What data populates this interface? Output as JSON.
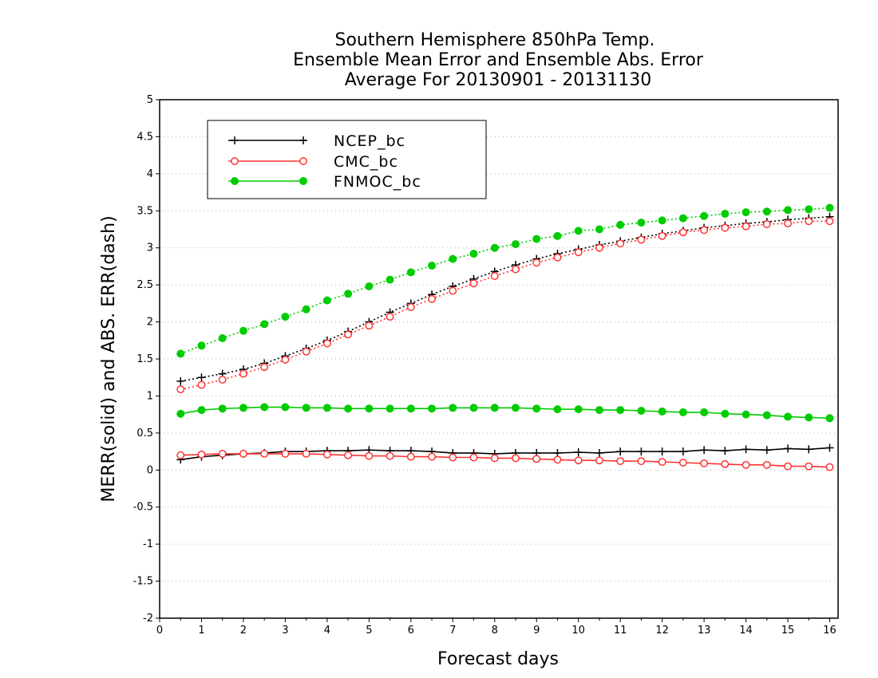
{
  "chart_data": {
    "type": "line",
    "title": [
      "Southern Hemisphere 850hPa Temp.",
      "Ensemble Mean Error and Ensemble Abs. Error",
      "Average For 20130901 - 20131130"
    ],
    "xlabel": "Forecast days",
    "ylabel": "MERR(solid) and ABS. ERR(dash)",
    "xlim": [
      0,
      16.2
    ],
    "ylim": [
      -2,
      5
    ],
    "xticks": [
      0,
      1,
      2,
      3,
      4,
      5,
      6,
      7,
      8,
      9,
      10,
      11,
      12,
      13,
      14,
      15,
      16
    ],
    "yticks": [
      -2,
      -1.5,
      -1,
      -0.5,
      0,
      0.5,
      1,
      1.5,
      2,
      2.5,
      3,
      3.5,
      4,
      4.5,
      5
    ],
    "grid": "horizontal dotted",
    "legend_position": "top-left",
    "x": [
      0.5,
      1,
      1.5,
      2,
      2.5,
      3,
      3.5,
      4,
      4.5,
      5,
      5.5,
      6,
      6.5,
      7,
      7.5,
      8,
      8.5,
      9,
      9.5,
      10,
      10.5,
      11,
      11.5,
      12,
      12.5,
      13,
      13.5,
      14,
      14.5,
      15,
      15.5,
      16
    ],
    "series": [
      {
        "name": "NCEP_bc",
        "color": "#000000",
        "marker": "plus",
        "merr": [
          0.14,
          0.18,
          0.2,
          0.22,
          0.23,
          0.25,
          0.25,
          0.26,
          0.26,
          0.27,
          0.26,
          0.26,
          0.25,
          0.23,
          0.23,
          0.22,
          0.23,
          0.23,
          0.23,
          0.24,
          0.23,
          0.25,
          0.25,
          0.25,
          0.25,
          0.27,
          0.26,
          0.28,
          0.27,
          0.29,
          0.28,
          0.3
        ],
        "abs_err": [
          1.2,
          1.25,
          1.3,
          1.36,
          1.44,
          1.54,
          1.64,
          1.75,
          1.87,
          2.0,
          2.13,
          2.25,
          2.37,
          2.48,
          2.58,
          2.68,
          2.77,
          2.85,
          2.92,
          2.98,
          3.04,
          3.09,
          3.14,
          3.19,
          3.23,
          3.27,
          3.3,
          3.33,
          3.35,
          3.38,
          3.4,
          3.42
        ]
      },
      {
        "name": "CMC_bc",
        "color": "#ff3333",
        "marker": "open-circle",
        "merr": [
          0.2,
          0.21,
          0.22,
          0.22,
          0.22,
          0.22,
          0.22,
          0.21,
          0.2,
          0.19,
          0.19,
          0.18,
          0.18,
          0.17,
          0.17,
          0.16,
          0.16,
          0.15,
          0.14,
          0.13,
          0.13,
          0.12,
          0.12,
          0.11,
          0.1,
          0.09,
          0.08,
          0.07,
          0.07,
          0.05,
          0.05,
          0.04
        ],
        "abs_err": [
          1.09,
          1.15,
          1.22,
          1.3,
          1.39,
          1.49,
          1.6,
          1.71,
          1.83,
          1.95,
          2.07,
          2.2,
          2.31,
          2.42,
          2.52,
          2.62,
          2.71,
          2.8,
          2.87,
          2.94,
          3.0,
          3.06,
          3.11,
          3.16,
          3.21,
          3.24,
          3.27,
          3.29,
          3.32,
          3.33,
          3.36,
          3.36
        ]
      },
      {
        "name": "FNMOC_bc",
        "color": "#00cc00",
        "marker": "filled-circle",
        "merr": [
          0.76,
          0.81,
          0.83,
          0.84,
          0.85,
          0.85,
          0.84,
          0.84,
          0.83,
          0.83,
          0.83,
          0.83,
          0.83,
          0.84,
          0.84,
          0.84,
          0.84,
          0.83,
          0.82,
          0.82,
          0.81,
          0.81,
          0.8,
          0.79,
          0.78,
          0.78,
          0.76,
          0.75,
          0.74,
          0.72,
          0.71,
          0.7
        ],
        "abs_err": [
          1.57,
          1.68,
          1.78,
          1.88,
          1.97,
          2.07,
          2.17,
          2.29,
          2.38,
          2.48,
          2.57,
          2.67,
          2.76,
          2.85,
          2.92,
          3.0,
          3.05,
          3.12,
          3.16,
          3.23,
          3.25,
          3.31,
          3.34,
          3.37,
          3.4,
          3.43,
          3.46,
          3.48,
          3.49,
          3.51,
          3.52,
          3.54
        ]
      }
    ]
  }
}
